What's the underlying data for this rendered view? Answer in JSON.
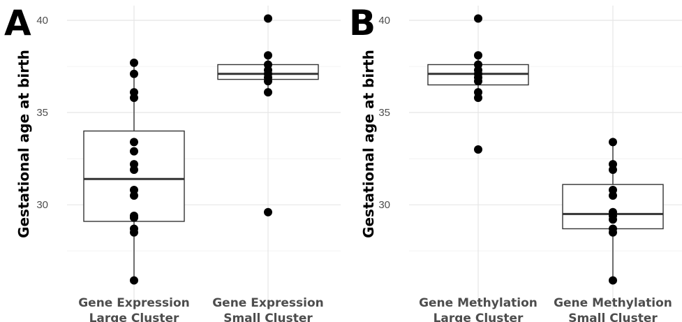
{
  "chart_data": [
    {
      "type": "box",
      "panel_label": "A",
      "ylabel": "Gestational age at birth",
      "xlabel": "",
      "ylim": [
        25.5,
        40.8
      ],
      "yticks": [
        30,
        35,
        40
      ],
      "categories": [
        {
          "line1": "Gene Expression",
          "line2": "Large Cluster"
        },
        {
          "line1": "Gene Expression",
          "line2": "Small Cluster"
        }
      ],
      "boxes": [
        {
          "q1": 29.1,
          "median": 31.4,
          "q3": 34.0,
          "whisker_low": 25.9,
          "whisker_high": 37.7,
          "points": [
            25.9,
            28.5,
            28.7,
            29.3,
            29.4,
            30.5,
            30.8,
            31.9,
            32.2,
            32.9,
            33.4,
            35.8,
            36.1,
            37.1,
            37.7
          ]
        },
        {
          "q1": 36.8,
          "median": 37.1,
          "q3": 37.6,
          "whisker_low": 36.1,
          "whisker_high": 38.1,
          "points": [
            29.6,
            36.1,
            36.7,
            36.9,
            37.1,
            37.3,
            37.6,
            38.1,
            40.1
          ]
        }
      ]
    },
    {
      "type": "box",
      "panel_label": "B",
      "ylabel": "Gestational age at birth",
      "xlabel": "",
      "ylim": [
        25.5,
        40.8
      ],
      "yticks": [
        30,
        35,
        40
      ],
      "categories": [
        {
          "line1": "Gene Methylation",
          "line2": "Large Cluster"
        },
        {
          "line1": "Gene Methylation",
          "line2": "Small Cluster"
        }
      ],
      "boxes": [
        {
          "q1": 36.5,
          "median": 37.1,
          "q3": 37.6,
          "whisker_low": 35.8,
          "whisker_high": 38.1,
          "points": [
            33.0,
            35.8,
            36.1,
            36.7,
            36.9,
            37.1,
            37.3,
            37.6,
            38.1,
            40.1
          ]
        },
        {
          "q1": 28.7,
          "median": 29.5,
          "q3": 31.1,
          "whisker_low": 25.9,
          "whisker_high": 33.4,
          "points": [
            25.9,
            28.5,
            28.7,
            29.2,
            29.4,
            29.6,
            30.5,
            30.8,
            31.9,
            32.2,
            33.4
          ]
        }
      ]
    }
  ]
}
